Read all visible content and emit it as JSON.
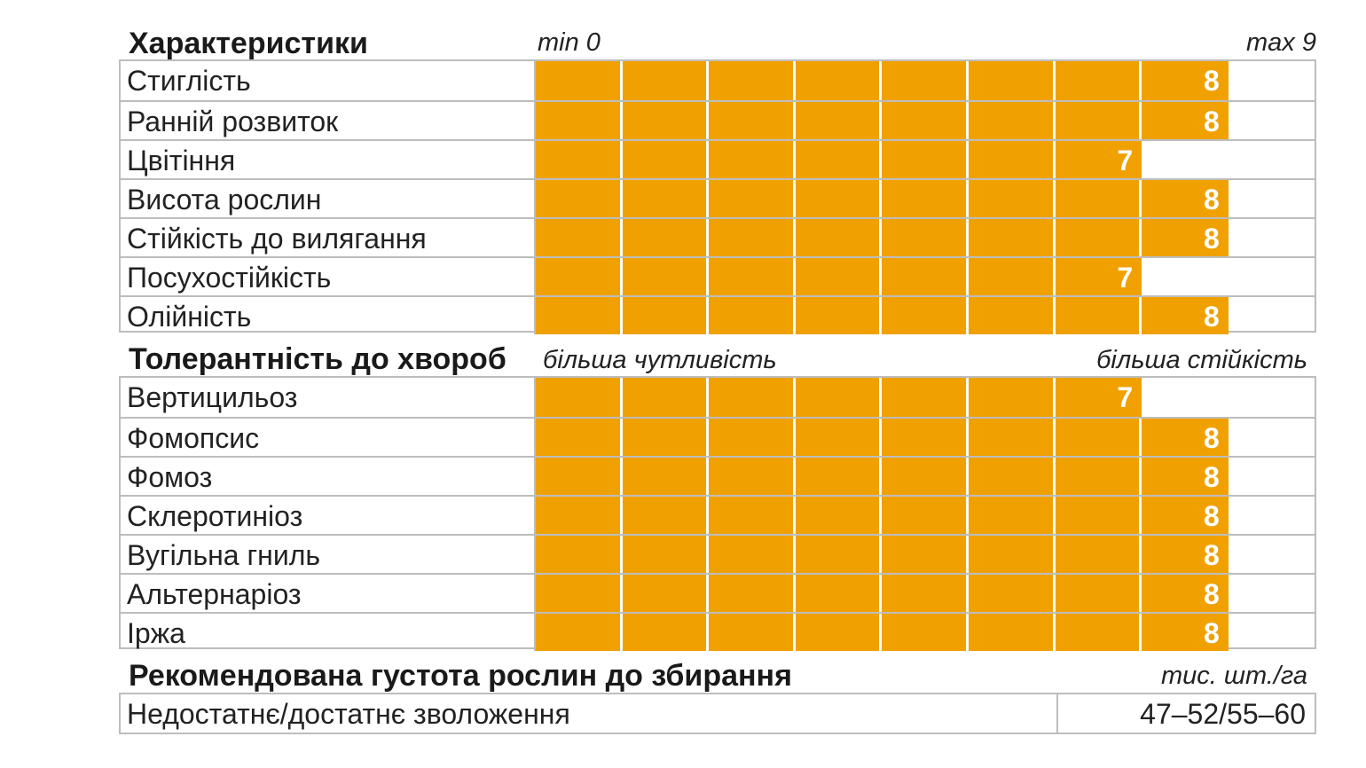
{
  "chart_data": [
    {
      "type": "bar",
      "title": "Характеристики",
      "scale_min_label": "min 0",
      "scale_max_label": "max 9",
      "xlim": [
        0,
        9
      ],
      "categories": [
        "Стиглість",
        "Ранній розвиток",
        "Цвітіння",
        "Висота рослин",
        "Стійкість до вилягання",
        "Посухостійкість",
        "Олійність"
      ],
      "values": [
        8,
        8,
        7,
        8,
        8,
        7,
        8
      ],
      "bar_color": "#f0a100"
    },
    {
      "type": "bar",
      "title": "Толерантність до хвороб",
      "scale_min_label": "більша чутливість",
      "scale_max_label": "більша стійкість",
      "xlim": [
        0,
        9
      ],
      "categories": [
        "Вертицильоз",
        "Фомопсис",
        "Фомоз",
        "Склеротиніоз",
        "Вугільна гниль",
        "Альтернаріоз",
        "Іржа"
      ],
      "values": [
        7,
        8,
        8,
        8,
        8,
        8,
        8
      ],
      "bar_color": "#f0a100"
    }
  ],
  "density": {
    "title": "Рекомендована густота рослин до збирання",
    "unit": "тис. шт./га",
    "row_label": "Недостатнє/достатнє зволоження",
    "row_value": "47–52/55–60"
  }
}
